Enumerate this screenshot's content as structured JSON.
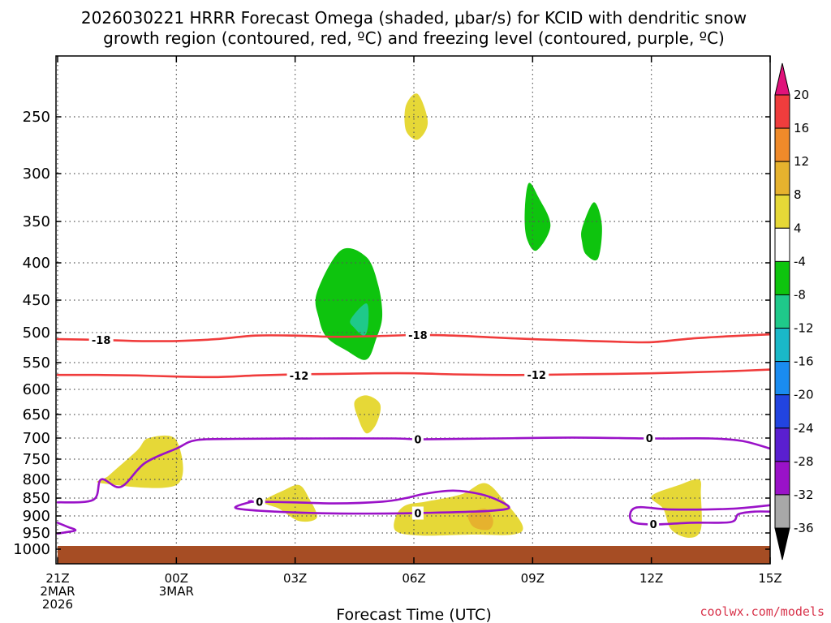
{
  "chart_data": {
    "type": "time-height contour",
    "title_line1": "2026030221 HRRR Forecast Omega (shaded, μbar/s) for KCID with dendritic snow",
    "title_line2": "growth region (contoured, red, ºC) and freezing level (contoured, purple, ºC)",
    "xlabel": "Forecast Time (UTC)",
    "credit": "coolwx.com/models",
    "x_range_hours": [
      0,
      18
    ],
    "y_range_hpa": [
      200,
      1050
    ],
    "x_ticks": [
      {
        "hour": 0,
        "lines": [
          "21Z",
          "2MAR",
          "2026"
        ]
      },
      {
        "hour": 3,
        "lines": [
          "00Z",
          "3MAR"
        ]
      },
      {
        "hour": 6,
        "lines": [
          "03Z"
        ]
      },
      {
        "hour": 9,
        "lines": [
          "06Z"
        ]
      },
      {
        "hour": 12,
        "lines": [
          "09Z"
        ]
      },
      {
        "hour": 15,
        "lines": [
          "12Z"
        ]
      },
      {
        "hour": 18,
        "lines": [
          "15Z"
        ]
      }
    ],
    "y_ticks": [
      250,
      300,
      350,
      400,
      450,
      500,
      550,
      600,
      650,
      700,
      750,
      800,
      850,
      900,
      950,
      1000
    ],
    "colorbar": {
      "labels": [
        "20",
        "16",
        "12",
        "8",
        "4",
        "-4",
        "-8",
        "-12",
        "-16",
        "-20",
        "-24",
        "-28",
        "-32",
        "-36"
      ],
      "bands": [
        {
          "lo": 16,
          "hi": 20,
          "color": "#ef3d3d"
        },
        {
          "lo": 12,
          "hi": 16,
          "color": "#ef8a2a"
        },
        {
          "lo": 8,
          "hi": 12,
          "color": "#e6b22e"
        },
        {
          "lo": 4,
          "hi": 8,
          "color": "#e6d837"
        },
        {
          "lo": -4,
          "hi": 4,
          "color": "#ffffff"
        },
        {
          "lo": -8,
          "hi": -4,
          "color": "#0ec40e"
        },
        {
          "lo": -12,
          "hi": -8,
          "color": "#1fc98a"
        },
        {
          "lo": -16,
          "hi": -12,
          "color": "#1ab8c8"
        },
        {
          "lo": -20,
          "hi": -16,
          "color": "#1a8cf0"
        },
        {
          "lo": -24,
          "hi": -20,
          "color": "#2244e0"
        },
        {
          "lo": -28,
          "hi": -24,
          "color": "#5a1fd0"
        },
        {
          "lo": -32,
          "hi": -28,
          "color": "#9a12c8"
        },
        {
          "lo": -36,
          "hi": -32,
          "color": "#a8a8a8"
        }
      ],
      "top_arrow_color": "#e0127a",
      "bottom_arrow_color": "#000000"
    },
    "shaded_regions": [
      {
        "name": "omega-pos-250",
        "color": "#e6d837",
        "points": [
          [
            8.8,
            240
          ],
          [
            9.1,
            230
          ],
          [
            9.35,
            255
          ],
          [
            9.1,
            270
          ],
          [
            8.8,
            262
          ]
        ]
      },
      {
        "name": "omega-neg-350a",
        "color": "#0ec40e",
        "points": [
          [
            11.9,
            310
          ],
          [
            12.15,
            325
          ],
          [
            12.45,
            355
          ],
          [
            12.1,
            385
          ],
          [
            11.85,
            370
          ],
          [
            11.8,
            340
          ]
        ]
      },
      {
        "name": "omega-neg-350b",
        "color": "#0ec40e",
        "points": [
          [
            13.25,
            358
          ],
          [
            13.55,
            330
          ],
          [
            13.75,
            355
          ],
          [
            13.65,
            395
          ],
          [
            13.35,
            390
          ],
          [
            13.25,
            375
          ]
        ]
      },
      {
        "name": "omega-neg-450",
        "color": "#0ec40e",
        "points": [
          [
            6.55,
            440
          ],
          [
            7.15,
            385
          ],
          [
            7.8,
            393
          ],
          [
            8.1,
            430
          ],
          [
            8.2,
            475
          ],
          [
            8.05,
            510
          ],
          [
            7.8,
            545
          ],
          [
            7.3,
            530
          ],
          [
            6.8,
            508
          ],
          [
            6.6,
            478
          ]
        ]
      },
      {
        "name": "omega-neg-450-core",
        "color": "#1fc98a",
        "points": [
          [
            7.4,
            480
          ],
          [
            7.8,
            455
          ],
          [
            7.85,
            485
          ],
          [
            7.75,
            505
          ],
          [
            7.5,
            493
          ]
        ]
      },
      {
        "name": "omega-pos-650",
        "color": "#e6d837",
        "points": [
          [
            7.5,
            625
          ],
          [
            7.8,
            612
          ],
          [
            8.15,
            630
          ],
          [
            8.05,
            670
          ],
          [
            7.8,
            690
          ],
          [
            7.6,
            660
          ]
        ]
      },
      {
        "name": "omega-pos-780",
        "color": "#e6d837",
        "points": [
          [
            1.1,
            810
          ],
          [
            1.3,
            790
          ],
          [
            2.0,
            730
          ],
          [
            2.3,
            700
          ],
          [
            3.0,
            705
          ],
          [
            3.0,
            815
          ]
        ]
      },
      {
        "name": "omega-pos-880a",
        "color": "#e6d837",
        "points": [
          [
            5.2,
            860
          ],
          [
            5.7,
            830
          ],
          [
            6.1,
            815
          ],
          [
            6.35,
            850
          ],
          [
            6.55,
            905
          ],
          [
            6.1,
            915
          ],
          [
            5.6,
            880
          ]
        ]
      },
      {
        "name": "omega-pos-900",
        "color": "#e6d837",
        "points": [
          [
            8.55,
            900
          ],
          [
            8.8,
            870
          ],
          [
            9.3,
            860
          ],
          [
            10.2,
            840
          ],
          [
            10.8,
            810
          ],
          [
            11.3,
            860
          ],
          [
            11.75,
            930
          ],
          [
            11.5,
            955
          ],
          [
            10.5,
            955
          ],
          [
            9.2,
            958
          ],
          [
            8.55,
            945
          ]
        ]
      },
      {
        "name": "omega-pos-900-core",
        "color": "#e6b22e",
        "points": [
          [
            10.4,
            895
          ],
          [
            10.8,
            880
          ],
          [
            11.0,
            912
          ],
          [
            10.9,
            940
          ],
          [
            10.55,
            935
          ],
          [
            10.4,
            915
          ]
        ]
      },
      {
        "name": "omega-pos-880b",
        "color": "#e6d837",
        "points": [
          [
            15.0,
            845
          ],
          [
            15.7,
            815
          ],
          [
            16.2,
            800
          ],
          [
            16.25,
            840
          ],
          [
            16.25,
            940
          ],
          [
            15.95,
            965
          ],
          [
            15.5,
            940
          ],
          [
            15.3,
            880
          ]
        ]
      }
    ],
    "contours": [
      {
        "name": "dgz-minus18",
        "color": "#f03c3c",
        "label": "-18",
        "points": [
          [
            0,
            511
          ],
          [
            1,
            512
          ],
          [
            2,
            514
          ],
          [
            3,
            514
          ],
          [
            4,
            511
          ],
          [
            5,
            505
          ],
          [
            6,
            505
          ],
          [
            7,
            507
          ],
          [
            8,
            506
          ],
          [
            9,
            504
          ],
          [
            10,
            505
          ],
          [
            11,
            508
          ],
          [
            12,
            511
          ],
          [
            13,
            513
          ],
          [
            14,
            515
          ],
          [
            15,
            516
          ],
          [
            16,
            510
          ],
          [
            17,
            506
          ],
          [
            18,
            503
          ]
        ],
        "label_at": [
          [
            1.1,
            512
          ],
          [
            9.1,
            504
          ]
        ]
      },
      {
        "name": "dgz-minus12",
        "color": "#f03c3c",
        "label": "-12",
        "points": [
          [
            0,
            573
          ],
          [
            1,
            573
          ],
          [
            2,
            574
          ],
          [
            3,
            576
          ],
          [
            4,
            577
          ],
          [
            5,
            574
          ],
          [
            6,
            572
          ],
          [
            7,
            571
          ],
          [
            8,
            570
          ],
          [
            9,
            570
          ],
          [
            10,
            572
          ],
          [
            11,
            573
          ],
          [
            12,
            573
          ],
          [
            13,
            572
          ],
          [
            14,
            571
          ],
          [
            15,
            570
          ],
          [
            16,
            568
          ],
          [
            17,
            566
          ],
          [
            18,
            563
          ]
        ],
        "label_at": [
          [
            6.1,
            574
          ],
          [
            12.1,
            573
          ]
        ]
      },
      {
        "name": "freezing-level-zero",
        "color": "#9a12c8",
        "label": "0",
        "points": [
          [
            0,
            862
          ],
          [
            0.9,
            855
          ],
          [
            1.1,
            800
          ],
          [
            1.6,
            820
          ],
          [
            2.2,
            760
          ],
          [
            3.0,
            725
          ],
          [
            3.5,
            705
          ],
          [
            4.5,
            702
          ],
          [
            6.5,
            701
          ],
          [
            8.5,
            701
          ],
          [
            9.2,
            703
          ],
          [
            11,
            701
          ],
          [
            13,
            699
          ],
          [
            15,
            701
          ],
          [
            16.5,
            701
          ],
          [
            17.3,
            707
          ],
          [
            18,
            725
          ]
        ],
        "label_at": [
          [
            9.1,
            703
          ],
          [
            14.95,
            700
          ]
        ]
      },
      {
        "name": "freezing-level-loop",
        "color": "#9a12c8",
        "label": "0",
        "points": [
          [
            4.9,
            860
          ],
          [
            6.0,
            862
          ],
          [
            7.0,
            865
          ],
          [
            8.2,
            860
          ],
          [
            8.8,
            850
          ],
          [
            9.3,
            838
          ],
          [
            10.0,
            830
          ],
          [
            10.7,
            840
          ],
          [
            11.2,
            860
          ],
          [
            11.4,
            878
          ],
          [
            11.0,
            885
          ],
          [
            10.5,
            888
          ],
          [
            9.5,
            891
          ],
          [
            8.5,
            893
          ],
          [
            7.0,
            893
          ],
          [
            5.5,
            888
          ],
          [
            4.5,
            878
          ],
          [
            4.9,
            860
          ]
        ],
        "label_at": [
          [
            5.1,
            860
          ],
          [
            9.1,
            892
          ]
        ]
      },
      {
        "name": "freezing-level-right",
        "color": "#9a12c8",
        "label": "0",
        "points": [
          [
            18,
            870
          ],
          [
            17.0,
            880
          ],
          [
            15.5,
            882
          ],
          [
            14.6,
            877
          ],
          [
            14.5,
            915
          ],
          [
            15.0,
            925
          ],
          [
            16.0,
            920
          ],
          [
            17.0,
            918
          ],
          [
            17.2,
            895
          ],
          [
            17.6,
            888
          ],
          [
            18,
            888
          ]
        ],
        "label_at": [
          [
            15.05,
            924
          ]
        ]
      },
      {
        "name": "freezing-level-corner",
        "color": "#9a12c8",
        "label": "",
        "points": [
          [
            0,
            920
          ],
          [
            0.25,
            932
          ],
          [
            0.45,
            942
          ],
          [
            0.2,
            948
          ],
          [
            0,
            952
          ]
        ],
        "label_at": []
      }
    ],
    "terrain": {
      "top_hpa": 990,
      "color": "#a64d24"
    }
  }
}
